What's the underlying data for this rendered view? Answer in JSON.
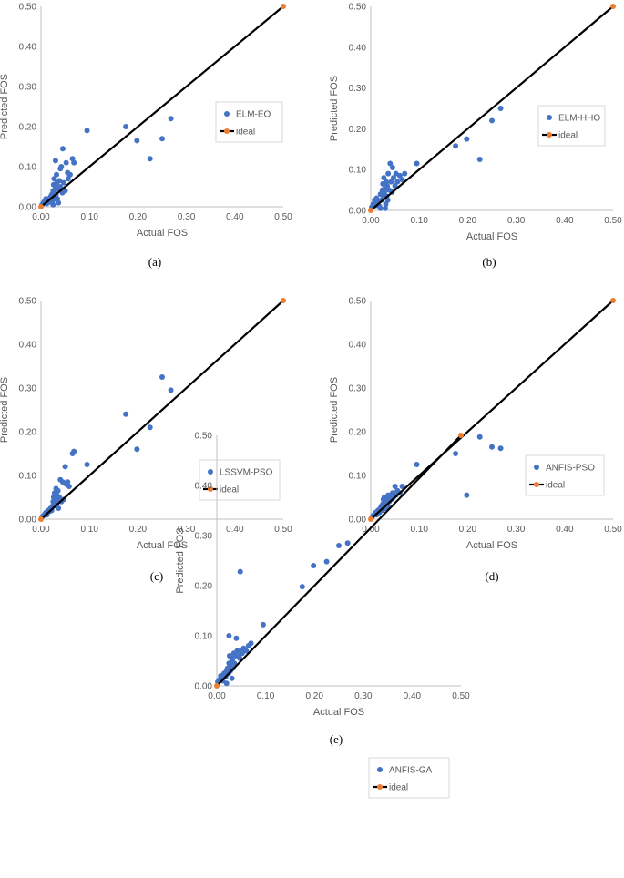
{
  "colors": {
    "predicted": "#4472C4",
    "ideal_line": "#000000",
    "ideal_marker": "#ED7D31",
    "axis": "#BFBFBF",
    "text": "#595959"
  },
  "chart_data": [
    {
      "type": "scatter",
      "caption": "(a)",
      "xlabel": "Actual FOS",
      "ylabel": "Predicted FOS",
      "xlim": [
        0,
        0.5
      ],
      "ylim": [
        0,
        0.5
      ],
      "xticks": [
        "0.00",
        "0.10",
        "0.20",
        "0.30",
        "0.40",
        "0.50"
      ],
      "yticks": [
        "0.00",
        "0.10",
        "0.20",
        "0.30",
        "0.40",
        "0.50"
      ],
      "grid": false,
      "legend_position": "right",
      "series": [
        {
          "name": "ELM-EO",
          "kind": "points",
          "points": [
            [
              0.002,
              0.005
            ],
            [
              0.005,
              0.01
            ],
            [
              0.008,
              0.015
            ],
            [
              0.01,
              0.02
            ],
            [
              0.012,
              0.008
            ],
            [
              0.015,
              0.02
            ],
            [
              0.018,
              0.012
            ],
            [
              0.02,
              0.025
            ],
            [
              0.022,
              0.03
            ],
            [
              0.024,
              0.015
            ],
            [
              0.025,
              0.04
            ],
            [
              0.026,
              0.055
            ],
            [
              0.027,
              0.07
            ],
            [
              0.028,
              0.02
            ],
            [
              0.03,
              0.05
            ],
            [
              0.031,
              0.03
            ],
            [
              0.032,
              0.08
            ],
            [
              0.033,
              0.06
            ],
            [
              0.034,
              0.02
            ],
            [
              0.035,
              0.045
            ],
            [
              0.036,
              0.01
            ],
            [
              0.038,
              0.065
            ],
            [
              0.04,
              0.05
            ],
            [
              0.04,
              0.095
            ],
            [
              0.042,
              0.1
            ],
            [
              0.044,
              0.035
            ],
            [
              0.045,
              0.145
            ],
            [
              0.047,
              0.06
            ],
            [
              0.05,
              0.04
            ],
            [
              0.052,
              0.11
            ],
            [
              0.055,
              0.085
            ],
            [
              0.056,
              0.07
            ],
            [
              0.06,
              0.08
            ],
            [
              0.065,
              0.12
            ],
            [
              0.068,
              0.11
            ],
            [
              0.03,
              0.115
            ],
            [
              0.025,
              0.005
            ],
            [
              0.028,
              0.035
            ],
            [
              0.095,
              0.19
            ],
            [
              0.175,
              0.2
            ],
            [
              0.198,
              0.165
            ],
            [
              0.225,
              0.12
            ],
            [
              0.25,
              0.17
            ],
            [
              0.268,
              0.22
            ]
          ]
        },
        {
          "name": "ideal",
          "kind": "line",
          "points": [
            [
              0,
              0
            ],
            [
              0.5,
              0.5
            ]
          ]
        }
      ]
    },
    {
      "type": "scatter",
      "caption": "(b)",
      "xlabel": "Actual FOS",
      "ylabel": "Predicted FOS",
      "xlim": [
        0,
        0.5
      ],
      "ylim": [
        0,
        0.5
      ],
      "xticks": [
        "0.00",
        "0.10",
        "0.20",
        "0.30",
        "0.40",
        "0.50"
      ],
      "yticks": [
        "0.00",
        "0.10",
        "0.20",
        "0.30",
        "0.40",
        "0.50"
      ],
      "grid": false,
      "legend_position": "right",
      "series": [
        {
          "name": "ELM-HHO",
          "kind": "points",
          "points": [
            [
              0.002,
              0.008
            ],
            [
              0.005,
              0.015
            ],
            [
              0.008,
              0.025
            ],
            [
              0.01,
              0.012
            ],
            [
              0.012,
              0.03
            ],
            [
              0.015,
              0.02
            ],
            [
              0.018,
              0.01
            ],
            [
              0.02,
              0.04
            ],
            [
              0.022,
              0.025
            ],
            [
              0.024,
              0.05
            ],
            [
              0.025,
              0.065
            ],
            [
              0.026,
              0.035
            ],
            [
              0.027,
              0.08
            ],
            [
              0.028,
              0.045
            ],
            [
              0.03,
              0.055
            ],
            [
              0.031,
              0.015
            ],
            [
              0.032,
              0.07
            ],
            [
              0.033,
              0.035
            ],
            [
              0.034,
              0.06
            ],
            [
              0.035,
              0.025
            ],
            [
              0.036,
              0.09
            ],
            [
              0.038,
              0.05
            ],
            [
              0.04,
              0.115
            ],
            [
              0.042,
              0.07
            ],
            [
              0.044,
              0.045
            ],
            [
              0.045,
              0.105
            ],
            [
              0.047,
              0.08
            ],
            [
              0.05,
              0.06
            ],
            [
              0.052,
              0.09
            ],
            [
              0.055,
              0.07
            ],
            [
              0.06,
              0.085
            ],
            [
              0.065,
              0.075
            ],
            [
              0.07,
              0.09
            ],
            [
              0.03,
              0.005
            ],
            [
              0.02,
              0.005
            ],
            [
              0.095,
              0.115
            ],
            [
              0.175,
              0.158
            ],
            [
              0.198,
              0.175
            ],
            [
              0.225,
              0.125
            ],
            [
              0.25,
              0.22
            ],
            [
              0.268,
              0.25
            ]
          ]
        },
        {
          "name": "ideal",
          "kind": "line",
          "points": [
            [
              0,
              0
            ],
            [
              0.5,
              0.5
            ]
          ]
        }
      ]
    },
    {
      "type": "scatter",
      "caption": "(c)",
      "xlabel": "Actual FOS",
      "ylabel": "Predicted FOS",
      "xlim": [
        0,
        0.5
      ],
      "ylim": [
        0,
        0.5
      ],
      "xticks": [
        "0.00",
        "0.10",
        "0.20",
        "0.30",
        "0.40",
        "0.50"
      ],
      "yticks": [
        "0.00",
        "0.10",
        "0.20",
        "0.30",
        "0.40",
        "0.50"
      ],
      "grid": false,
      "legend_position": "right",
      "series": [
        {
          "name": "LSSVM-PSO",
          "kind": "points",
          "points": [
            [
              0.002,
              0.005
            ],
            [
              0.005,
              0.008
            ],
            [
              0.008,
              0.012
            ],
            [
              0.01,
              0.015
            ],
            [
              0.012,
              0.01
            ],
            [
              0.015,
              0.02
            ],
            [
              0.018,
              0.018
            ],
            [
              0.02,
              0.025
            ],
            [
              0.022,
              0.02
            ],
            [
              0.024,
              0.03
            ],
            [
              0.025,
              0.04
            ],
            [
              0.026,
              0.05
            ],
            [
              0.027,
              0.035
            ],
            [
              0.028,
              0.06
            ],
            [
              0.03,
              0.045
            ],
            [
              0.031,
              0.07
            ],
            [
              0.032,
              0.03
            ],
            [
              0.033,
              0.055
            ],
            [
              0.034,
              0.04
            ],
            [
              0.035,
              0.065
            ],
            [
              0.036,
              0.025
            ],
            [
              0.038,
              0.05
            ],
            [
              0.04,
              0.09
            ],
            [
              0.042,
              0.04
            ],
            [
              0.045,
              0.085
            ],
            [
              0.047,
              0.045
            ],
            [
              0.05,
              0.12
            ],
            [
              0.052,
              0.08
            ],
            [
              0.055,
              0.085
            ],
            [
              0.058,
              0.075
            ],
            [
              0.065,
              0.15
            ],
            [
              0.068,
              0.155
            ],
            [
              0.095,
              0.125
            ],
            [
              0.175,
              0.24
            ],
            [
              0.198,
              0.16
            ],
            [
              0.225,
              0.21
            ],
            [
              0.25,
              0.325
            ],
            [
              0.268,
              0.295
            ]
          ]
        },
        {
          "name": "ideal",
          "kind": "line",
          "points": [
            [
              0,
              0
            ],
            [
              0.5,
              0.5
            ]
          ]
        }
      ]
    },
    {
      "type": "scatter",
      "caption": "(d)",
      "xlabel": "Actual FOS",
      "ylabel": "Predicted FOS",
      "xlim": [
        0,
        0.5
      ],
      "ylim": [
        0,
        0.5
      ],
      "xticks": [
        "0.00",
        "0.10",
        "0.20",
        "0.30",
        "0.40",
        "0.50"
      ],
      "yticks": [
        "0.00",
        "0.10",
        "0.20",
        "0.30",
        "0.40",
        "0.50"
      ],
      "grid": false,
      "legend_position": "right",
      "series": [
        {
          "name": "ANFIS-PSO",
          "kind": "points",
          "points": [
            [
              0.002,
              0.004
            ],
            [
              0.005,
              0.008
            ],
            [
              0.008,
              0.012
            ],
            [
              0.01,
              0.015
            ],
            [
              0.012,
              0.01
            ],
            [
              0.015,
              0.02
            ],
            [
              0.018,
              0.015
            ],
            [
              0.02,
              0.025
            ],
            [
              0.022,
              0.03
            ],
            [
              0.024,
              0.02
            ],
            [
              0.025,
              0.035
            ],
            [
              0.026,
              0.045
            ],
            [
              0.027,
              0.03
            ],
            [
              0.028,
              0.05
            ],
            [
              0.03,
              0.04
            ],
            [
              0.031,
              0.025
            ],
            [
              0.032,
              0.05
            ],
            [
              0.033,
              0.035
            ],
            [
              0.034,
              0.045
            ],
            [
              0.035,
              0.03
            ],
            [
              0.036,
              0.055
            ],
            [
              0.038,
              0.04
            ],
            [
              0.04,
              0.05
            ],
            [
              0.042,
              0.045
            ],
            [
              0.045,
              0.06
            ],
            [
              0.047,
              0.05
            ],
            [
              0.05,
              0.075
            ],
            [
              0.052,
              0.055
            ],
            [
              0.055,
              0.065
            ],
            [
              0.06,
              0.06
            ],
            [
              0.065,
              0.075
            ],
            [
              0.095,
              0.125
            ],
            [
              0.175,
              0.15
            ],
            [
              0.198,
              0.055
            ],
            [
              0.225,
              0.188
            ],
            [
              0.25,
              0.165
            ],
            [
              0.268,
              0.162
            ]
          ]
        },
        {
          "name": "ideal",
          "kind": "line",
          "points": [
            [
              0,
              0
            ],
            [
              0.5,
              0.5
            ]
          ]
        }
      ]
    },
    {
      "type": "scatter",
      "caption": "(e)",
      "xlabel": "Actual FOS",
      "ylabel": "Predicted FOS",
      "xlim": [
        0,
        0.5
      ],
      "ylim": [
        0,
        0.5
      ],
      "xticks": [
        "0.00",
        "0.10",
        "0.20",
        "0.30",
        "0.40",
        "0.50"
      ],
      "yticks": [
        "0.00",
        "0.10",
        "0.20",
        "0.30",
        "0.40",
        "0.50"
      ],
      "grid": false,
      "legend_position": "right",
      "series": [
        {
          "name": "ANFIS-GA",
          "kind": "points",
          "points": [
            [
              0.002,
              0.008
            ],
            [
              0.005,
              0.012
            ],
            [
              0.008,
              0.02
            ],
            [
              0.01,
              0.015
            ],
            [
              0.012,
              0.01
            ],
            [
              0.015,
              0.025
            ],
            [
              0.018,
              0.018
            ],
            [
              0.02,
              0.03
            ],
            [
              0.022,
              0.035
            ],
            [
              0.024,
              0.025
            ],
            [
              0.025,
              0.045
            ],
            [
              0.026,
              0.06
            ],
            [
              0.027,
              0.04
            ],
            [
              0.028,
              0.03
            ],
            [
              0.03,
              0.055
            ],
            [
              0.031,
              0.015
            ],
            [
              0.032,
              0.05
            ],
            [
              0.033,
              0.035
            ],
            [
              0.035,
              0.065
            ],
            [
              0.036,
              0.045
            ],
            [
              0.038,
              0.06
            ],
            [
              0.04,
              0.095
            ],
            [
              0.042,
              0.07
            ],
            [
              0.045,
              0.06
            ],
            [
              0.047,
              0.055
            ],
            [
              0.048,
              0.228
            ],
            [
              0.05,
              0.07
            ],
            [
              0.052,
              0.065
            ],
            [
              0.055,
              0.075
            ],
            [
              0.06,
              0.07
            ],
            [
              0.065,
              0.08
            ],
            [
              0.07,
              0.085
            ],
            [
              0.025,
              0.1
            ],
            [
              0.02,
              0.005
            ],
            [
              0.095,
              0.122
            ],
            [
              0.175,
              0.198
            ],
            [
              0.198,
              0.24
            ],
            [
              0.225,
              0.248
            ],
            [
              0.25,
              0.28
            ],
            [
              0.268,
              0.285
            ]
          ]
        },
        {
          "name": "ideal",
          "kind": "line",
          "points": [
            [
              0,
              0
            ],
            [
              0.5,
              0.5
            ]
          ]
        }
      ]
    }
  ]
}
